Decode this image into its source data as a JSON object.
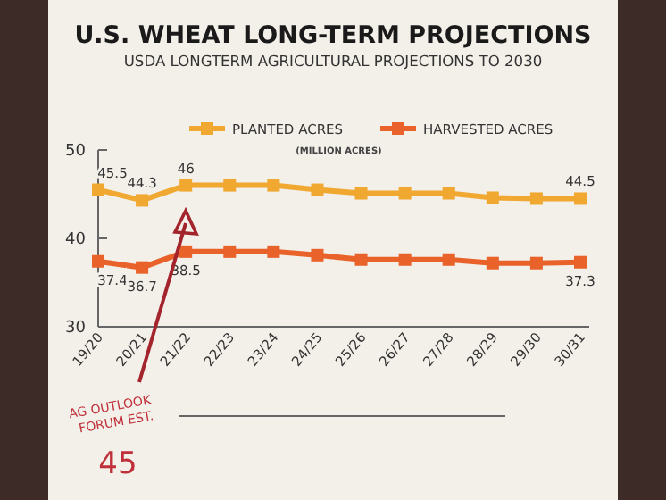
{
  "chart_data": {
    "type": "line",
    "title": "U.S. WHEAT LONG-TERM PROJECTIONS",
    "subtitle": "USDA LONGTERM AGRICULTURAL PROJECTIONS TO 2030",
    "ylabel": "(MILLION ACRES)",
    "categories": [
      "19/20",
      "20/21",
      "21/22",
      "22/23",
      "23/24",
      "24/25",
      "25/26",
      "26/27",
      "27/28",
      "28/29",
      "29/30",
      "30/31"
    ],
    "series": [
      {
        "name": "PLANTED ACRES",
        "color": "#f0a830",
        "values": [
          45.5,
          44.3,
          46,
          46,
          46,
          45.5,
          45.1,
          45.1,
          45.1,
          44.6,
          44.5,
          44.5
        ],
        "value_labels": [
          "45.5",
          "44.3",
          "46",
          null,
          null,
          null,
          null,
          null,
          null,
          null,
          null,
          "44.5"
        ]
      },
      {
        "name": "HARVESTED ACRES",
        "color": "#e8622a",
        "values": [
          37.4,
          36.7,
          38.5,
          38.5,
          38.5,
          38.1,
          37.6,
          37.6,
          37.6,
          37.2,
          37.2,
          37.3
        ],
        "value_labels": [
          "37.4",
          "36.7",
          "38.5",
          null,
          null,
          null,
          null,
          null,
          null,
          null,
          null,
          "37.3"
        ]
      }
    ],
    "ylim": [
      30,
      50
    ],
    "yticks": [
      30,
      40,
      50
    ],
    "grid": false,
    "legend": "top",
    "marker": "square",
    "line_style": "solid",
    "annotations": [
      "AG OUTLOOK FORUM EST.",
      "45"
    ]
  }
}
